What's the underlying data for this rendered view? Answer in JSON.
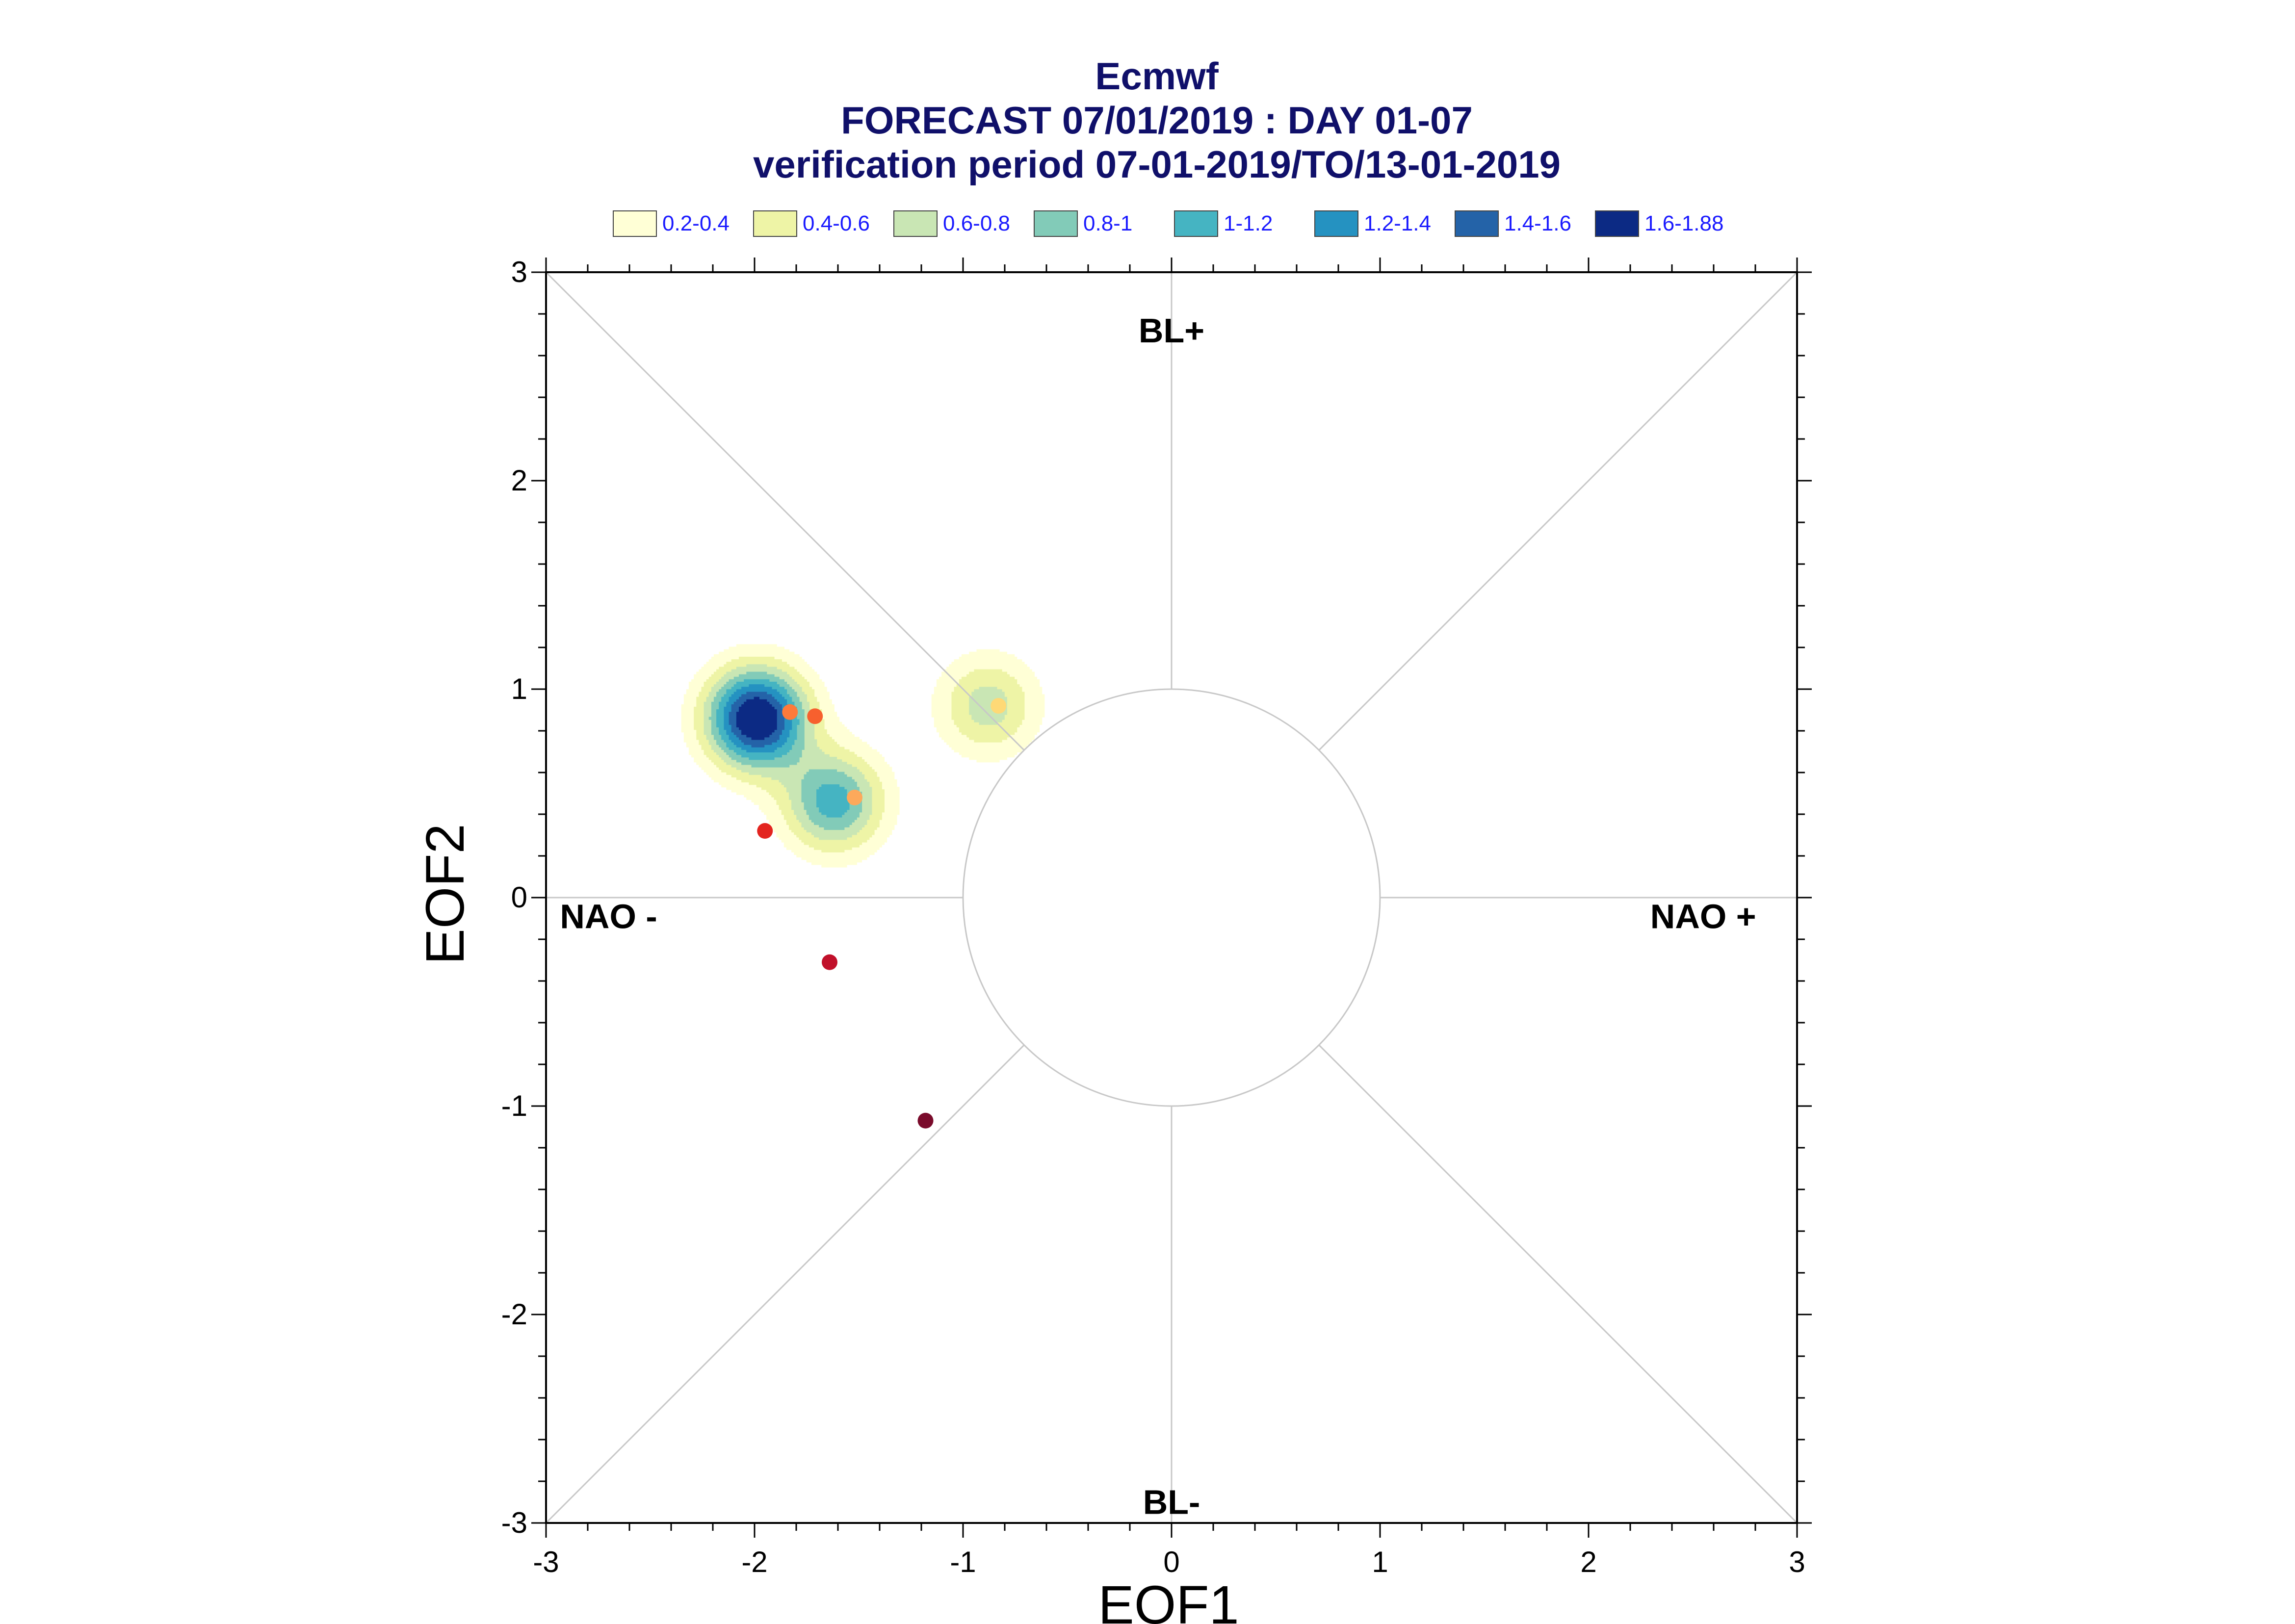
{
  "chart_data": {
    "type": "scatter",
    "title": "Ecmwf",
    "subtitle_lines": [
      "FORECAST 07/01/2019 : DAY 01-07",
      "verification period 07-01-2019/TO/13-01-2019"
    ],
    "xlabel": "EOF1",
    "ylabel": "EOF2",
    "xlim": [
      -3,
      3
    ],
    "ylim": [
      -3,
      3
    ],
    "xticks": [
      -3,
      -2,
      -1,
      0,
      1,
      2,
      3
    ],
    "yticks": [
      -3,
      -2,
      -1,
      0,
      1,
      2,
      3
    ],
    "xtick_labels": [
      "-3",
      "-2",
      "-1",
      "0",
      "1",
      "2",
      "3"
    ],
    "ytick_labels": [
      "-3",
      "-2",
      "-1",
      "0",
      "1",
      "2",
      "3"
    ],
    "regime_labels": [
      {
        "text": "BL+",
        "x": 0,
        "y": 2.72
      },
      {
        "text": "BL-",
        "x": 0,
        "y": -2.9
      },
      {
        "text": "NAO -",
        "x": -2.7,
        "y": -0.09
      },
      {
        "text": "NAO +",
        "x": 2.55,
        "y": -0.09
      }
    ],
    "unit_circle_radius": 1,
    "grid": true,
    "legend": {
      "placement": "top",
      "entries": [
        {
          "label": "0.2-0.4",
          "color": "#ffffd6"
        },
        {
          "label": "0.4-0.6",
          "color": "#eef4a6"
        },
        {
          "label": "0.6-0.8",
          "color": "#c9e6b4"
        },
        {
          "label": "0.8-1",
          "color": "#82cbb8"
        },
        {
          "label": "1-1.2",
          "color": "#45b4c2"
        },
        {
          "label": "1.2-1.4",
          "color": "#2592c1"
        },
        {
          "label": "1.4-1.6",
          "color": "#2463a8"
        },
        {
          "label": "1.6-1.88",
          "color": "#0c2a84"
        }
      ]
    },
    "density_centers": [
      {
        "x": -1.99,
        "y": 0.86,
        "peak": 1.88
      },
      {
        "x": -1.62,
        "y": 0.46,
        "peak": 1.1
      },
      {
        "x": -0.88,
        "y": 0.92,
        "peak": 0.7
      }
    ],
    "points": [
      {
        "x": -1.83,
        "y": 0.89,
        "color": "#fd7a3a"
      },
      {
        "x": -1.71,
        "y": 0.87,
        "color": "#f7602e"
      },
      {
        "x": -1.52,
        "y": 0.48,
        "color": "#fda95b"
      },
      {
        "x": -0.83,
        "y": 0.92,
        "color": "#fed976"
      },
      {
        "x": -1.95,
        "y": 0.32,
        "color": "#e3241f"
      },
      {
        "x": -1.64,
        "y": -0.31,
        "color": "#c1102a"
      },
      {
        "x": -1.18,
        "y": -1.07,
        "color": "#7a0b2b"
      }
    ]
  }
}
